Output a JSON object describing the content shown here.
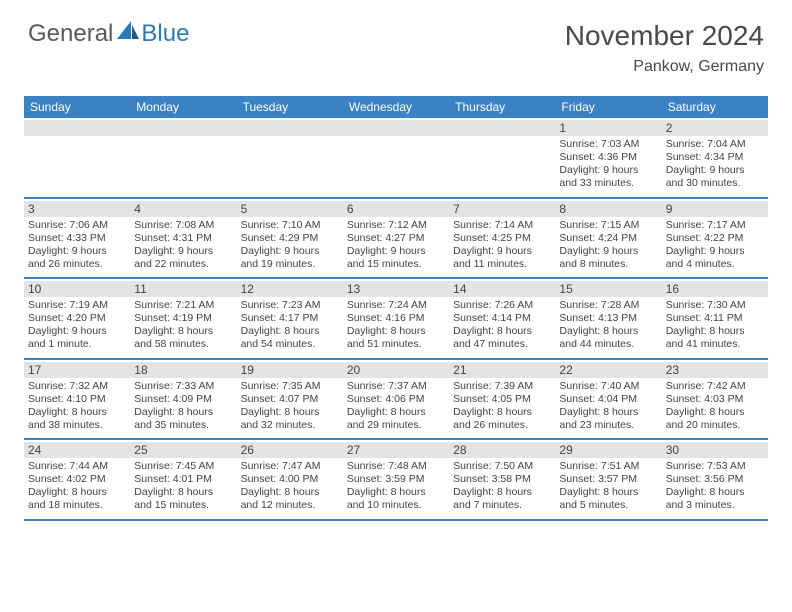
{
  "brand": {
    "general": "General",
    "blue": "Blue",
    "logo_color": "#2a7ab9"
  },
  "title": "November 2024",
  "location": "Pankow, Germany",
  "colors": {
    "header_bg": "#3b82c4",
    "header_text": "#ffffff",
    "daynum_bg": "#e4e4e4",
    "row_border": "#3b82c4",
    "text": "#444444",
    "bg": "#ffffff"
  },
  "day_names": [
    "Sunday",
    "Monday",
    "Tuesday",
    "Wednesday",
    "Thursday",
    "Friday",
    "Saturday"
  ],
  "weeks": [
    [
      {
        "n": "",
        "sr": "",
        "ss": "",
        "dl": ""
      },
      {
        "n": "",
        "sr": "",
        "ss": "",
        "dl": ""
      },
      {
        "n": "",
        "sr": "",
        "ss": "",
        "dl": ""
      },
      {
        "n": "",
        "sr": "",
        "ss": "",
        "dl": ""
      },
      {
        "n": "",
        "sr": "",
        "ss": "",
        "dl": ""
      },
      {
        "n": "1",
        "sr": "Sunrise: 7:03 AM",
        "ss": "Sunset: 4:36 PM",
        "dl": "Daylight: 9 hours and 33 minutes."
      },
      {
        "n": "2",
        "sr": "Sunrise: 7:04 AM",
        "ss": "Sunset: 4:34 PM",
        "dl": "Daylight: 9 hours and 30 minutes."
      }
    ],
    [
      {
        "n": "3",
        "sr": "Sunrise: 7:06 AM",
        "ss": "Sunset: 4:33 PM",
        "dl": "Daylight: 9 hours and 26 minutes."
      },
      {
        "n": "4",
        "sr": "Sunrise: 7:08 AM",
        "ss": "Sunset: 4:31 PM",
        "dl": "Daylight: 9 hours and 22 minutes."
      },
      {
        "n": "5",
        "sr": "Sunrise: 7:10 AM",
        "ss": "Sunset: 4:29 PM",
        "dl": "Daylight: 9 hours and 19 minutes."
      },
      {
        "n": "6",
        "sr": "Sunrise: 7:12 AM",
        "ss": "Sunset: 4:27 PM",
        "dl": "Daylight: 9 hours and 15 minutes."
      },
      {
        "n": "7",
        "sr": "Sunrise: 7:14 AM",
        "ss": "Sunset: 4:25 PM",
        "dl": "Daylight: 9 hours and 11 minutes."
      },
      {
        "n": "8",
        "sr": "Sunrise: 7:15 AM",
        "ss": "Sunset: 4:24 PM",
        "dl": "Daylight: 9 hours and 8 minutes."
      },
      {
        "n": "9",
        "sr": "Sunrise: 7:17 AM",
        "ss": "Sunset: 4:22 PM",
        "dl": "Daylight: 9 hours and 4 minutes."
      }
    ],
    [
      {
        "n": "10",
        "sr": "Sunrise: 7:19 AM",
        "ss": "Sunset: 4:20 PM",
        "dl": "Daylight: 9 hours and 1 minute."
      },
      {
        "n": "11",
        "sr": "Sunrise: 7:21 AM",
        "ss": "Sunset: 4:19 PM",
        "dl": "Daylight: 8 hours and 58 minutes."
      },
      {
        "n": "12",
        "sr": "Sunrise: 7:23 AM",
        "ss": "Sunset: 4:17 PM",
        "dl": "Daylight: 8 hours and 54 minutes."
      },
      {
        "n": "13",
        "sr": "Sunrise: 7:24 AM",
        "ss": "Sunset: 4:16 PM",
        "dl": "Daylight: 8 hours and 51 minutes."
      },
      {
        "n": "14",
        "sr": "Sunrise: 7:26 AM",
        "ss": "Sunset: 4:14 PM",
        "dl": "Daylight: 8 hours and 47 minutes."
      },
      {
        "n": "15",
        "sr": "Sunrise: 7:28 AM",
        "ss": "Sunset: 4:13 PM",
        "dl": "Daylight: 8 hours and 44 minutes."
      },
      {
        "n": "16",
        "sr": "Sunrise: 7:30 AM",
        "ss": "Sunset: 4:11 PM",
        "dl": "Daylight: 8 hours and 41 minutes."
      }
    ],
    [
      {
        "n": "17",
        "sr": "Sunrise: 7:32 AM",
        "ss": "Sunset: 4:10 PM",
        "dl": "Daylight: 8 hours and 38 minutes."
      },
      {
        "n": "18",
        "sr": "Sunrise: 7:33 AM",
        "ss": "Sunset: 4:09 PM",
        "dl": "Daylight: 8 hours and 35 minutes."
      },
      {
        "n": "19",
        "sr": "Sunrise: 7:35 AM",
        "ss": "Sunset: 4:07 PM",
        "dl": "Daylight: 8 hours and 32 minutes."
      },
      {
        "n": "20",
        "sr": "Sunrise: 7:37 AM",
        "ss": "Sunset: 4:06 PM",
        "dl": "Daylight: 8 hours and 29 minutes."
      },
      {
        "n": "21",
        "sr": "Sunrise: 7:39 AM",
        "ss": "Sunset: 4:05 PM",
        "dl": "Daylight: 8 hours and 26 minutes."
      },
      {
        "n": "22",
        "sr": "Sunrise: 7:40 AM",
        "ss": "Sunset: 4:04 PM",
        "dl": "Daylight: 8 hours and 23 minutes."
      },
      {
        "n": "23",
        "sr": "Sunrise: 7:42 AM",
        "ss": "Sunset: 4:03 PM",
        "dl": "Daylight: 8 hours and 20 minutes."
      }
    ],
    [
      {
        "n": "24",
        "sr": "Sunrise: 7:44 AM",
        "ss": "Sunset: 4:02 PM",
        "dl": "Daylight: 8 hours and 18 minutes."
      },
      {
        "n": "25",
        "sr": "Sunrise: 7:45 AM",
        "ss": "Sunset: 4:01 PM",
        "dl": "Daylight: 8 hours and 15 minutes."
      },
      {
        "n": "26",
        "sr": "Sunrise: 7:47 AM",
        "ss": "Sunset: 4:00 PM",
        "dl": "Daylight: 8 hours and 12 minutes."
      },
      {
        "n": "27",
        "sr": "Sunrise: 7:48 AM",
        "ss": "Sunset: 3:59 PM",
        "dl": "Daylight: 8 hours and 10 minutes."
      },
      {
        "n": "28",
        "sr": "Sunrise: 7:50 AM",
        "ss": "Sunset: 3:58 PM",
        "dl": "Daylight: 8 hours and 7 minutes."
      },
      {
        "n": "29",
        "sr": "Sunrise: 7:51 AM",
        "ss": "Sunset: 3:57 PM",
        "dl": "Daylight: 8 hours and 5 minutes."
      },
      {
        "n": "30",
        "sr": "Sunrise: 7:53 AM",
        "ss": "Sunset: 3:56 PM",
        "dl": "Daylight: 8 hours and 3 minutes."
      }
    ]
  ]
}
